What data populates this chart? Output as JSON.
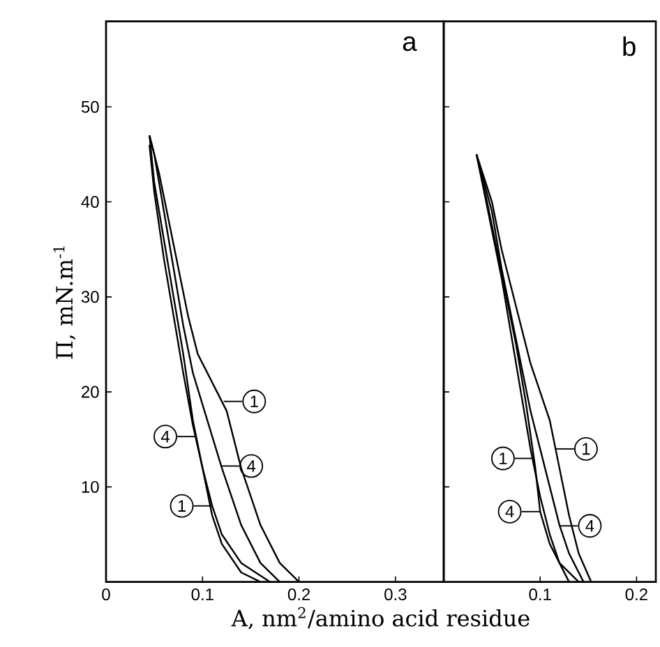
{
  "chart_data": [
    {
      "type": "line",
      "title": "a",
      "ylabel": "Π, mN.m$^{-1}$",
      "xlabel": "A, nm$^{2}$/amino acid residue",
      "xlim": [
        0,
        0.35
      ],
      "ylim": [
        0,
        59
      ],
      "xticks": [
        0,
        0.1,
        0.2,
        0.3
      ],
      "yticks": [
        10,
        20,
        30,
        40,
        50
      ],
      "series": [
        {
          "color": "#000000",
          "x": [
            0.2,
            0.18,
            0.16,
            0.14,
            0.125,
            0.11,
            0.095,
            0.085,
            0.075,
            0.065,
            0.055,
            0.045
          ],
          "values": [
            0,
            2,
            6,
            12,
            18,
            21,
            24,
            28,
            33,
            38,
            43,
            47
          ]
        },
        {
          "color": "#000000",
          "x": [
            0.045,
            0.05,
            0.06,
            0.07,
            0.08,
            0.09,
            0.1,
            0.11,
            0.12,
            0.14,
            0.17
          ],
          "values": [
            47,
            42,
            36,
            30,
            24,
            17,
            12,
            8,
            5,
            2,
            0
          ]
        },
        {
          "color": "#000000",
          "x": [
            0.18,
            0.16,
            0.14,
            0.12,
            0.105,
            0.09,
            0.08,
            0.07,
            0.06,
            0.05,
            0.045
          ],
          "values": [
            0,
            2,
            6,
            12,
            17,
            22,
            27,
            33,
            39,
            45,
            47
          ]
        },
        {
          "color": "#000000",
          "x": [
            0.045,
            0.05,
            0.06,
            0.07,
            0.08,
            0.09,
            0.1,
            0.11,
            0.12,
            0.14,
            0.16
          ],
          "values": [
            46,
            41,
            34,
            28,
            22,
            16.5,
            12,
            7,
            4,
            1,
            0
          ]
        }
      ],
      "annotations": [
        {
          "text": "1",
          "x": 0.122,
          "y": 19
        },
        {
          "text": "4",
          "x": 0.093,
          "y": 15.3
        },
        {
          "text": "4",
          "x": 0.119,
          "y": 12.2
        },
        {
          "text": "1",
          "x": 0.11,
          "y": 8
        }
      ]
    },
    {
      "type": "line",
      "title": "b",
      "xlim": [
        0,
        0.22
      ],
      "ylim": [
        0,
        59
      ],
      "xticks": [
        0.1,
        0.2
      ],
      "yticks": [
        10,
        20,
        30,
        40,
        50
      ],
      "tick_labels": "x",
      "series": [
        {
          "color": "#000000",
          "x": [
            0.153,
            0.14,
            0.13,
            0.12,
            0.11,
            0.1,
            0.09,
            0.08,
            0.07,
            0.06,
            0.05,
            0.034
          ],
          "values": [
            0,
            3,
            7,
            12,
            17,
            20,
            23,
            27,
            31,
            35,
            40,
            45
          ]
        },
        {
          "color": "#000000",
          "x": [
            0.034,
            0.04,
            0.05,
            0.06,
            0.07,
            0.08,
            0.09,
            0.1,
            0.11,
            0.12,
            0.14
          ],
          "values": [
            45,
            42,
            37,
            32,
            26,
            20,
            14,
            9,
            5,
            2,
            0
          ]
        },
        {
          "color": "#000000",
          "x": [
            0.145,
            0.13,
            0.12,
            0.11,
            0.1,
            0.09,
            0.08,
            0.07,
            0.06,
            0.05,
            0.034
          ],
          "values": [
            0,
            3,
            6,
            10,
            14,
            18,
            23,
            28,
            33,
            39,
            45
          ]
        },
        {
          "color": "#000000",
          "x": [
            0.034,
            0.045,
            0.055,
            0.065,
            0.075,
            0.085,
            0.095,
            0.1,
            0.11,
            0.13
          ],
          "values": [
            45,
            40,
            35,
            30,
            25,
            19,
            12,
            7.4,
            4,
            0
          ]
        }
      ],
      "annotations": [
        {
          "text": "1",
          "x": 0.116,
          "y": 14
        },
        {
          "text": "1",
          "x": 0.093,
          "y": 13
        },
        {
          "text": "4",
          "x": 0.12,
          "y": 5.9
        },
        {
          "text": "4",
          "x": 0.1,
          "y": 7.4
        }
      ]
    }
  ]
}
